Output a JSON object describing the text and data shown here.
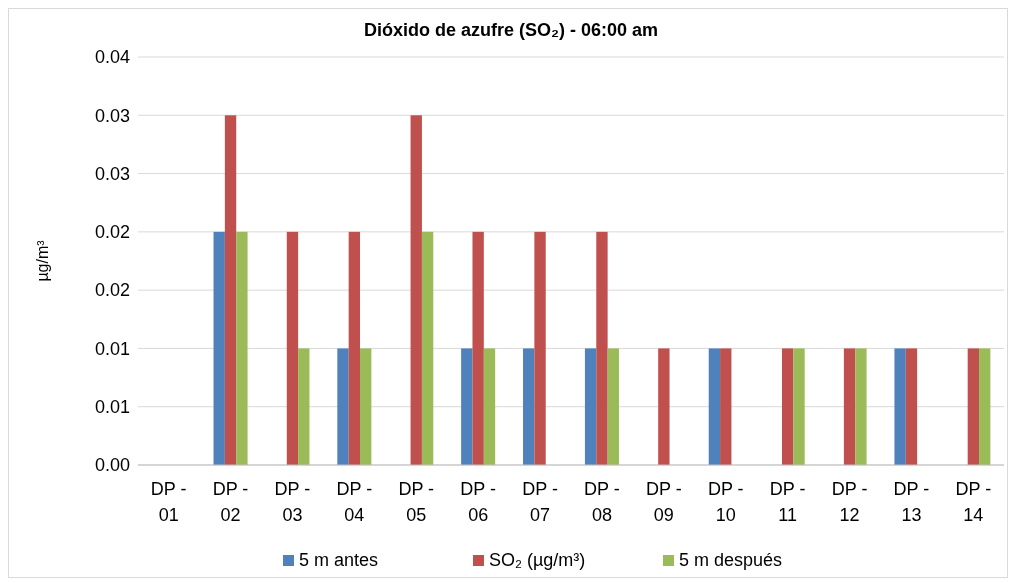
{
  "chart_data": {
    "type": "bar",
    "title": "Dióxido de azufre (SO₂) - 06:00 am",
    "ylabel": "µg/m³",
    "categories": [
      "DP - 01",
      "DP - 02",
      "DP - 03",
      "DP - 04",
      "DP - 05",
      "DP - 06",
      "DP - 07",
      "DP - 08",
      "DP - 09",
      "DP - 10",
      "DP - 11",
      "DP - 12",
      "DP - 13",
      "DP - 14"
    ],
    "series": [
      {
        "name": "5 m antes",
        "color": "#4f81bd",
        "values": [
          null,
          0.02,
          null,
          0.01,
          null,
          0.01,
          0.01,
          0.01,
          null,
          0.01,
          null,
          null,
          0.01,
          null
        ]
      },
      {
        "name": "SO₂ (µg/m³)",
        "color": "#c0504d",
        "values": [
          null,
          0.03,
          0.02,
          0.02,
          0.03,
          0.02,
          0.02,
          0.02,
          0.01,
          0.01,
          0.01,
          0.01,
          0.01,
          0.01
        ]
      },
      {
        "name": "5 m después",
        "color": "#9bbb59",
        "values": [
          null,
          0.02,
          0.01,
          0.01,
          0.02,
          0.01,
          null,
          0.01,
          null,
          null,
          0.01,
          0.01,
          null,
          0.01
        ]
      }
    ],
    "ylim": [
      0,
      0.035
    ],
    "yticks": [
      {
        "value": 0,
        "label": "0.00"
      },
      {
        "value": 0.005,
        "label": "0.01"
      },
      {
        "value": 0.01,
        "label": "0.01"
      },
      {
        "value": 0.015,
        "label": "0.02"
      },
      {
        "value": 0.02,
        "label": "0.02"
      },
      {
        "value": 0.025,
        "label": "0.03"
      },
      {
        "value": 0.03,
        "label": "0.03"
      },
      {
        "value": 0.035,
        "label": "0.04"
      }
    ],
    "grid": "y",
    "legend": "bottom"
  }
}
